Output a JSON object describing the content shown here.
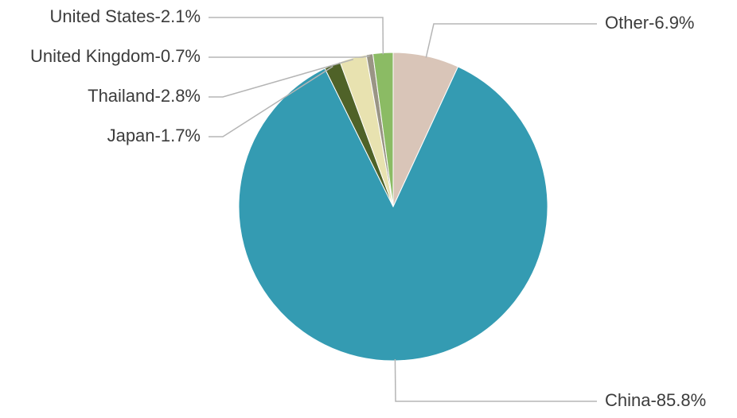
{
  "chart_data": {
    "type": "pie",
    "values": [
      6.9,
      85.8,
      1.7,
      2.8,
      0.7,
      2.1
    ],
    "value_labels": [
      "Other-6.9%",
      "China-85.8%",
      "Japan-1.7%",
      "Thailand-2.8%",
      "United Kingdom-0.7%",
      "United States-2.1%"
    ],
    "colors": [
      "#d9c5b8",
      "#349bb2",
      "#4f6228",
      "#e8e2b0",
      "#9a9585",
      "#8bbb64"
    ]
  }
}
